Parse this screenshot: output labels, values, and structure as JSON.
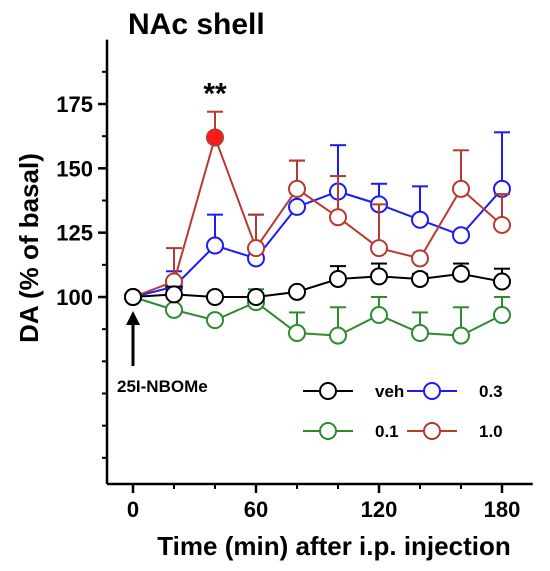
{
  "chart_data": {
    "type": "line",
    "title": "NAc shell",
    "xlabel": "Time (min) after i.p. injection",
    "ylabel": "DA (% of basal)",
    "xlim": [
      -10,
      195
    ],
    "ylim": [
      34,
      200
    ],
    "xticks": [
      0,
      60,
      120,
      180
    ],
    "yticks": [
      100,
      125,
      150,
      175
    ],
    "x": [
      0,
      20,
      40,
      60,
      80,
      100,
      120,
      140,
      160,
      180
    ],
    "series": [
      {
        "name": "veh",
        "color": "#000000",
        "values": [
          100,
          101,
          100,
          100,
          102,
          107,
          108,
          107,
          109,
          106
        ],
        "errors": [
          0,
          3,
          0,
          0,
          0,
          5,
          5,
          2,
          4,
          5
        ]
      },
      {
        "name": "0.1",
        "color": "#2e8b2e",
        "values": [
          100,
          95,
          91,
          98,
          86,
          85,
          93,
          86,
          85,
          93
        ],
        "errors": [
          0,
          0,
          0,
          5,
          8,
          11,
          7,
          8,
          11,
          7
        ]
      },
      {
        "name": "0.3",
        "color": "#1a1aff",
        "values": [
          100,
          104,
          120,
          115,
          135,
          141,
          136,
          130,
          124,
          142
        ],
        "errors": [
          0,
          6,
          12,
          17,
          18,
          18,
          8,
          13,
          0,
          22
        ]
      },
      {
        "name": "1.0",
        "color": "#b83a2e",
        "values": [
          100,
          106,
          162,
          119,
          142,
          131,
          119,
          115,
          142,
          128
        ],
        "errors": [
          0,
          13,
          10,
          13,
          11,
          16,
          17,
          0,
          15,
          12
        ]
      }
    ],
    "highlighted_point": {
      "series": "1.0",
      "x": 40,
      "fill": "#ff1a1a"
    },
    "significance": {
      "x": 40,
      "text": "**"
    },
    "arrow_annotation": {
      "x": 0,
      "text": "25I-NBOMe"
    },
    "legend_placement": "bottom-right",
    "grid": false
  }
}
